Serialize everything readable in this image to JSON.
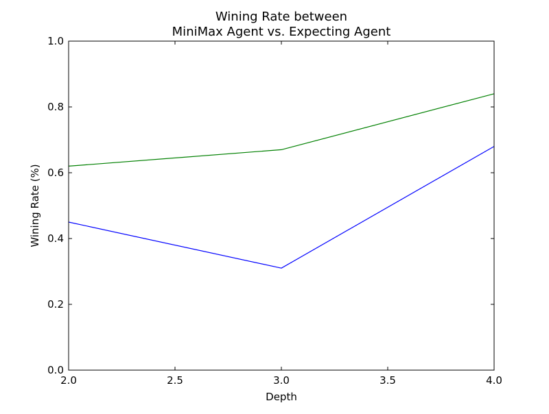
{
  "chart_data": {
    "type": "line",
    "title": [
      "Wining Rate between",
      "MiniMax Agent vs. Expecting Agent"
    ],
    "xlabel": "Depth",
    "ylabel": "Wining Rate (%)",
    "xlim": [
      2.0,
      4.0
    ],
    "ylim": [
      0.0,
      1.0
    ],
    "x_ticks": [
      2.0,
      2.5,
      3.0,
      3.5,
      4.0
    ],
    "x_tick_labels": [
      "2.0",
      "2.5",
      "3.0",
      "3.5",
      "4.0"
    ],
    "y_ticks": [
      0.0,
      0.2,
      0.4,
      0.6,
      0.8,
      1.0
    ],
    "y_tick_labels": [
      "0.0",
      "0.2",
      "0.4",
      "0.6",
      "0.8",
      "1.0"
    ],
    "grid": false,
    "legend": "none",
    "x": [
      2.0,
      3.0,
      4.0
    ],
    "series": [
      {
        "values": [
          0.45,
          0.31,
          0.68
        ],
        "color": "#0000ff"
      },
      {
        "values": [
          0.62,
          0.67,
          0.84
        ],
        "color": "#008000"
      }
    ]
  }
}
